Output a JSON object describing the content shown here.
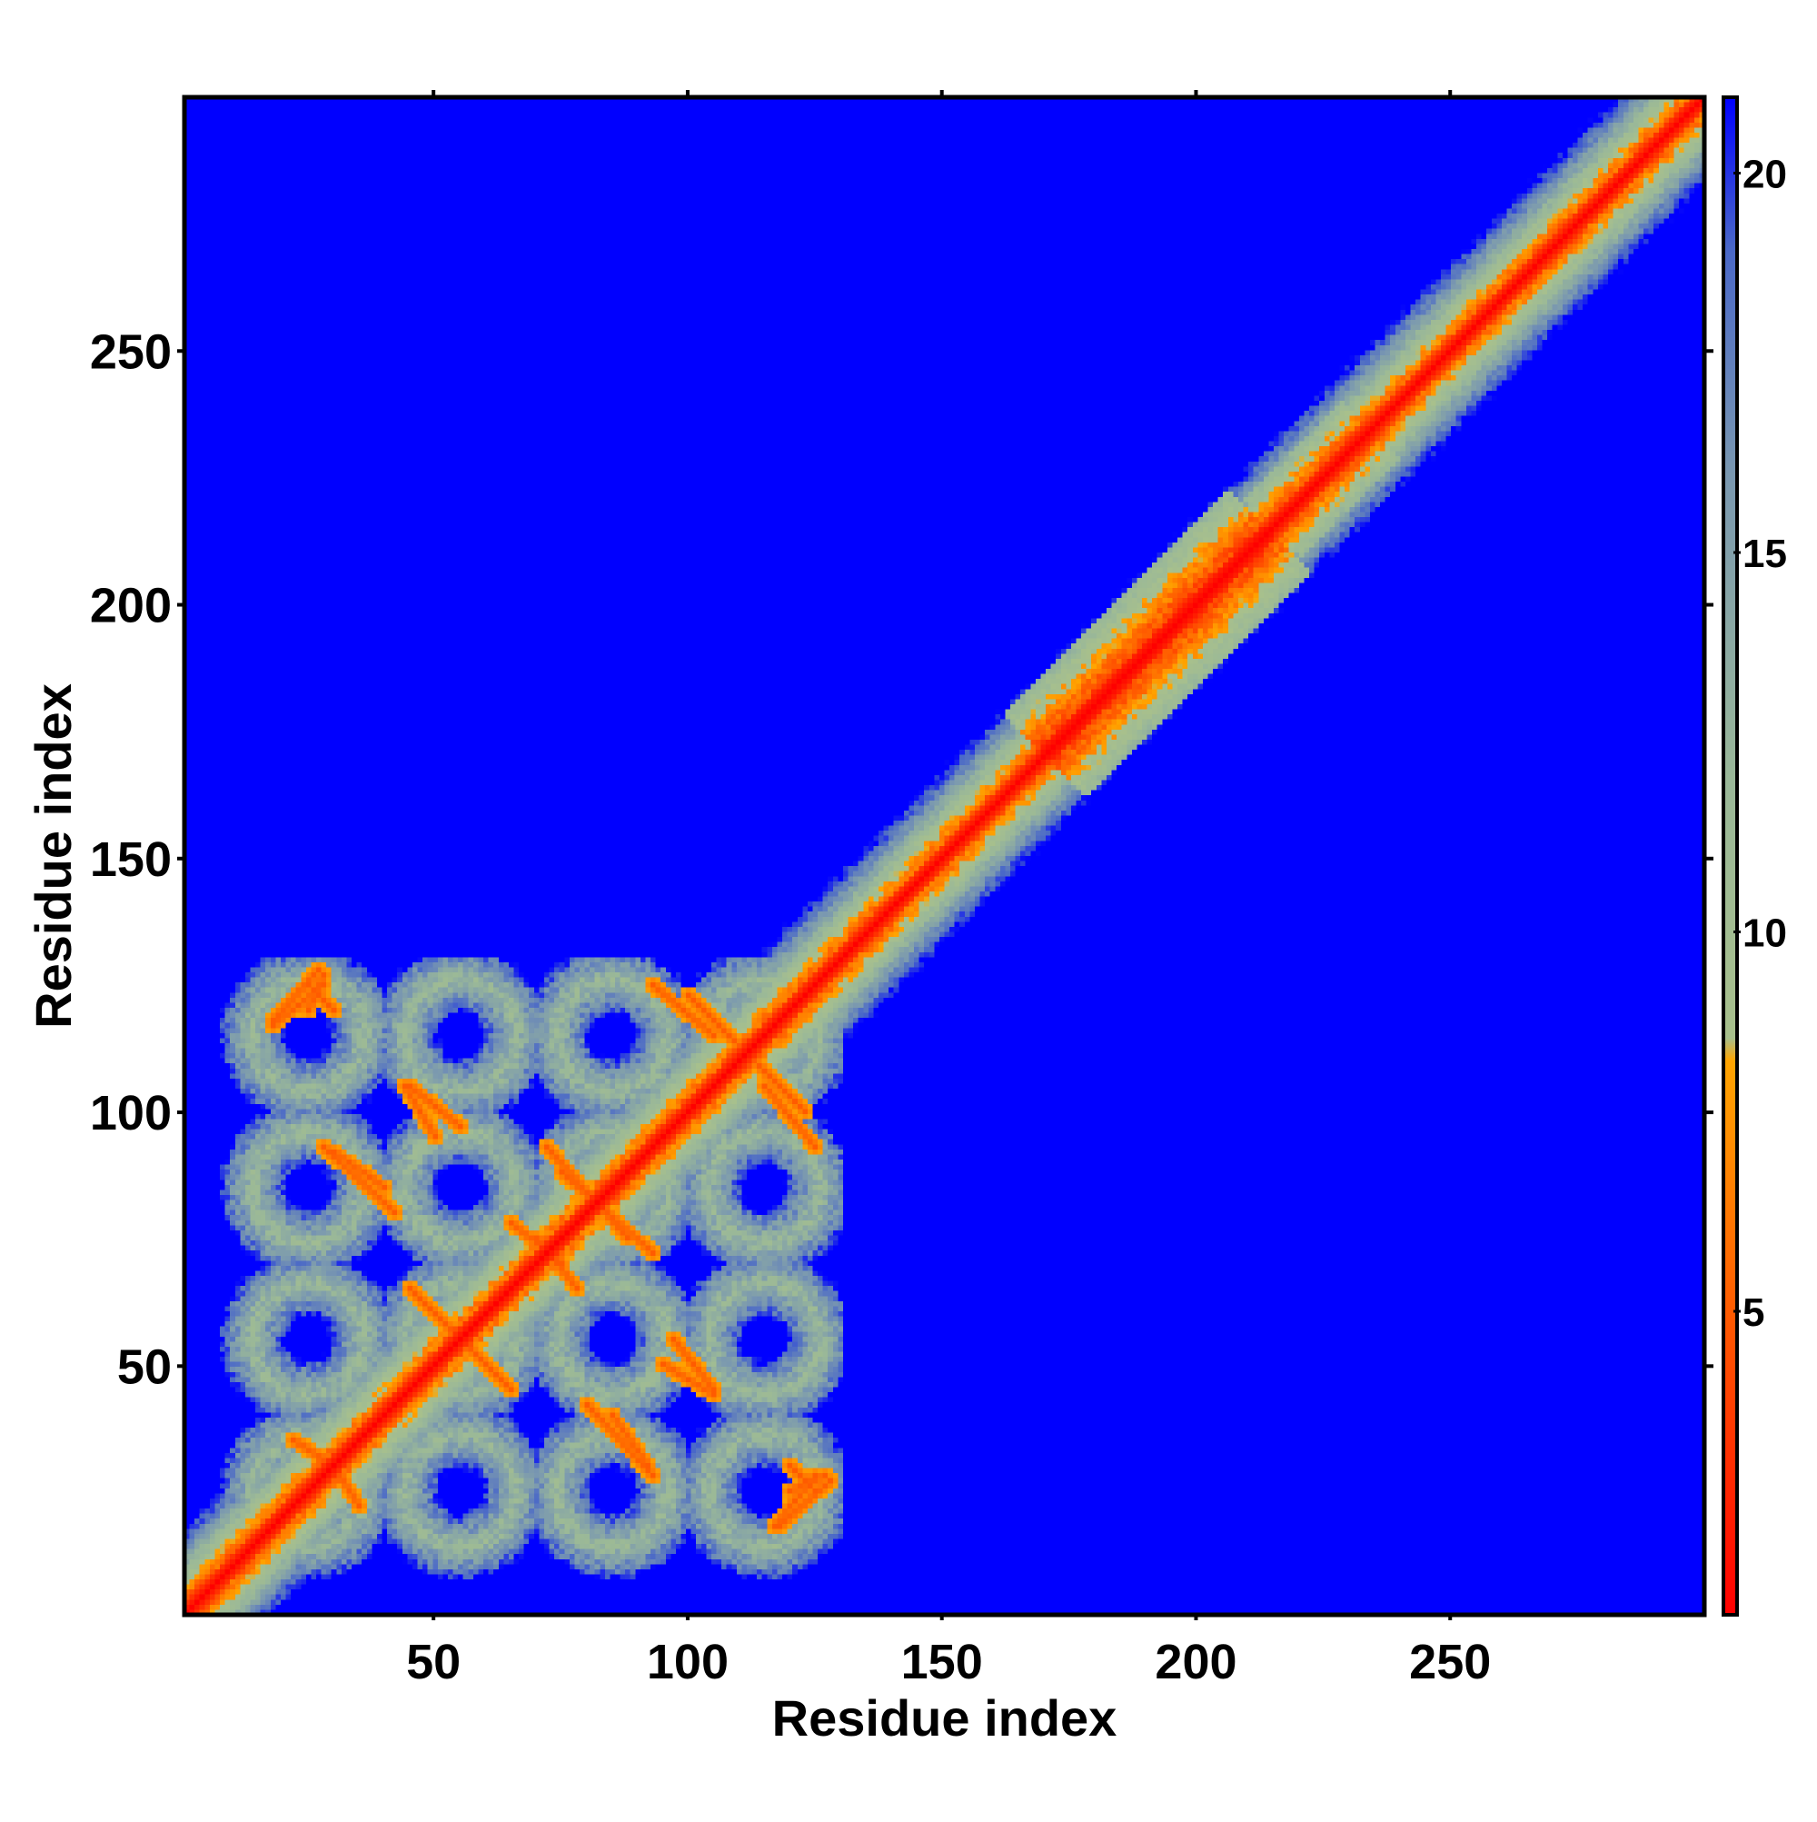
{
  "chart_data": {
    "type": "heatmap",
    "title": "",
    "xlabel": "Residue index",
    "ylabel": "Residue index",
    "xlim": [
      1,
      300
    ],
    "ylim": [
      1,
      300
    ],
    "x_ticks": [
      50,
      100,
      150,
      200,
      250
    ],
    "y_ticks": [
      50,
      100,
      150,
      200,
      250
    ],
    "colorbar": {
      "range": [
        1,
        21
      ],
      "ticks": [
        5,
        10,
        15,
        20
      ],
      "stops": [
        {
          "value": 1,
          "color": "#ff0000"
        },
        {
          "value": 4.5,
          "color": "#ff5000"
        },
        {
          "value": 8.3,
          "color": "#ffa500"
        },
        {
          "value": 8.6,
          "color": "#a8c08c"
        },
        {
          "value": 12,
          "color": "#9ab898"
        },
        {
          "value": 16,
          "color": "#7a98b0"
        },
        {
          "value": 19,
          "color": "#4a68c8"
        },
        {
          "value": 21,
          "color": "#0000ff"
        }
      ]
    },
    "background_color": "#0000ff",
    "description_features": {
      "main_diagonal": "distance near 1 along x = y from 1 to 300",
      "domain_1_range": [
        1,
        130
      ],
      "domain_2_range": [
        170,
        215
      ]
    }
  }
}
